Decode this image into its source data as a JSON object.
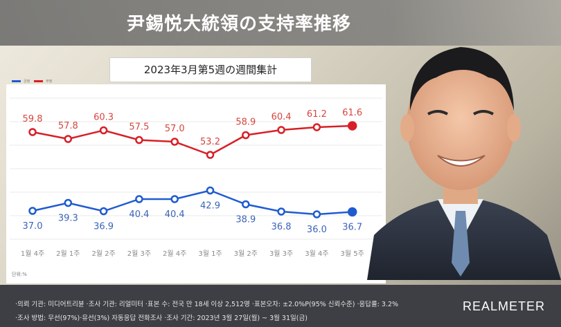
{
  "header": {
    "title": "尹錫悦大統領の支持率推移",
    "subtitle": "2023年3月第5週の週間集計"
  },
  "legend": [
    {
      "label": "긍정",
      "color": "#1f5bd0"
    },
    {
      "label": "부정",
      "color": "#d81f26"
    }
  ],
  "unit_label": "단위:%",
  "footer": {
    "line1": "·의뢰 기관: 미디어트리뷴 ·조사 기관: 리얼미터 ·표본 수: 전국 만 18세 이상 2,512명 ·표본오차: ±2.0%P(95% 신뢰수준) ·응답률: 3.2%",
    "line2": "·조사 방법: 무선(97%)·유선(3%) 자동응답 전화조사 ·조사 기간: 2023년 3월 27일(월) ~ 3월 31일(금)",
    "brand": "REALMETER"
  },
  "colors": {
    "negative": "#d81f26",
    "positive": "#1f5bd0",
    "negative_label": "#d6453f",
    "positive_label": "#3a63b8"
  },
  "chart_data": {
    "type": "line",
    "categories": [
      "1월 4주",
      "2월 1주",
      "2월 2주",
      "2월 3주",
      "2월 4주",
      "3월 1주",
      "3월 2주",
      "3월 3주",
      "3월 4주",
      "3월 5주"
    ],
    "series": [
      {
        "name": "부정",
        "values": [
          59.8,
          57.8,
          60.3,
          57.5,
          57.0,
          53.2,
          58.9,
          60.4,
          61.2,
          61.6
        ]
      },
      {
        "name": "긍정",
        "values": [
          37.0,
          39.3,
          36.9,
          40.4,
          40.4,
          42.9,
          38.9,
          36.8,
          36.0,
          36.7
        ]
      }
    ],
    "grid": true,
    "legend_position": "top-left"
  }
}
